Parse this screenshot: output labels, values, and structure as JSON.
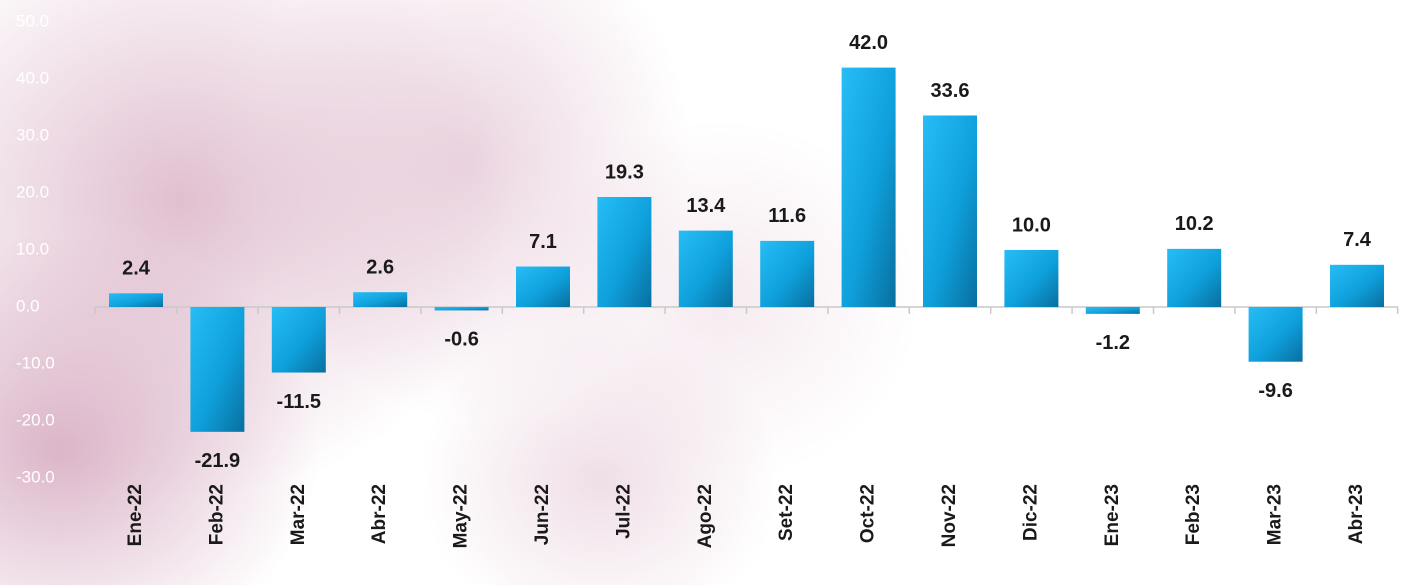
{
  "chart_data": {
    "type": "bar",
    "categories": [
      "Ene-22",
      "Feb-22",
      "Mar-22",
      "Abr-22",
      "May-22",
      "Jun-22",
      "Jul-22",
      "Ago-22",
      "Set-22",
      "Oct-22",
      "Nov-22",
      "Dic-22",
      "Ene-23",
      "Feb-23",
      "Mar-23",
      "Abr-23"
    ],
    "values": [
      2.4,
      -21.9,
      -11.5,
      2.6,
      -0.6,
      7.1,
      19.3,
      13.4,
      11.6,
      42.0,
      33.6,
      10.0,
      -1.2,
      10.2,
      -9.6,
      7.4
    ],
    "value_labels": [
      "2.4",
      "-21.9",
      "-11.5",
      "2.6",
      "-0.6",
      "7.1",
      "19.3",
      "13.4",
      "11.6",
      "42.0",
      "33.6",
      "10.0",
      "-1.2",
      "10.2",
      "-9.6",
      "7.4"
    ],
    "color": "#13a4e0",
    "ylim": [
      -30,
      50
    ],
    "yticks": [
      {
        "value": -30,
        "label": "-30.0"
      },
      {
        "value": -20,
        "label": "-20.0"
      },
      {
        "value": -10,
        "label": "-10.0"
      },
      {
        "value": 0,
        "label": "0.0"
      },
      {
        "value": 10,
        "label": "10.0"
      },
      {
        "value": 20,
        "label": "20.0"
      },
      {
        "value": 30,
        "label": "30.0"
      },
      {
        "value": 40,
        "label": "40.0"
      },
      {
        "value": 50,
        "label": "50.0"
      }
    ],
    "grid": false
  }
}
